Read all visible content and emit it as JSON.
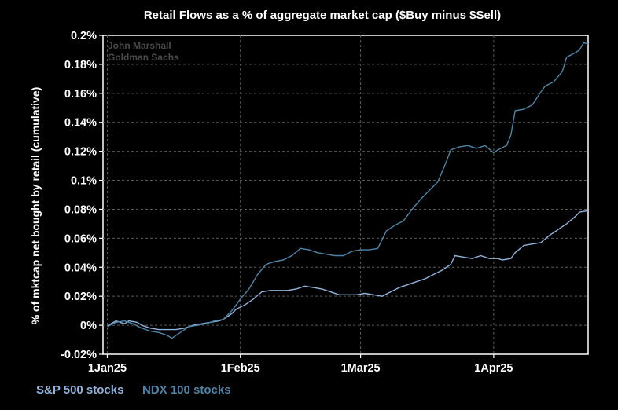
{
  "chart_data": {
    "type": "line",
    "title": "Retail Flows as a % of aggregate market cap ($Buy minus $Sell)",
    "ylabel": "% of mktcap net bought by retail (cumulative)",
    "xlabel": "",
    "credit_lines": [
      "John Marshall",
      "Goldman Sachs"
    ],
    "x_range": [
      "2024-12-31",
      "2025-04-23"
    ],
    "ylim": [
      -0.02,
      0.2
    ],
    "y_ticks": [
      {
        "value": 0.2,
        "label": "0.2%"
      },
      {
        "value": 0.18,
        "label": "0.18%"
      },
      {
        "value": 0.16,
        "label": "0.16%"
      },
      {
        "value": 0.14,
        "label": "0.14%"
      },
      {
        "value": 0.12,
        "label": "0.12%"
      },
      {
        "value": 0.1,
        "label": "0.1%"
      },
      {
        "value": 0.08,
        "label": "0.08%"
      },
      {
        "value": 0.06,
        "label": "0.06%"
      },
      {
        "value": 0.04,
        "label": "0.04%"
      },
      {
        "value": 0.02,
        "label": "0.02%"
      },
      {
        "value": 0,
        "label": "0%"
      },
      {
        "value": -0.02,
        "label": "-0.02%"
      }
    ],
    "x_ticks": [
      {
        "date": "2025-01-01",
        "label": "1Jan25"
      },
      {
        "date": "2025-02-01",
        "label": "1Feb25"
      },
      {
        "date": "2025-03-01",
        "label": "1Mar25"
      },
      {
        "date": "2025-04-01",
        "label": "1Apr25"
      }
    ],
    "grid": true,
    "grid_style": "dashed",
    "legend_position": "bottom-left",
    "series": [
      {
        "name": "S&P 500 stocks",
        "color": "#8fb3dc",
        "points": [
          [
            "2025-01-01",
            -0.0005
          ],
          [
            "2025-01-03",
            0.003
          ],
          [
            "2025-01-05",
            0.001
          ],
          [
            "2025-01-06",
            0.003
          ],
          [
            "2025-01-08",
            0.002
          ],
          [
            "2025-01-09",
            0.0
          ],
          [
            "2025-01-11",
            -0.002
          ],
          [
            "2025-01-13",
            -0.003
          ],
          [
            "2025-01-15",
            -0.003
          ],
          [
            "2025-01-17",
            -0.003
          ],
          [
            "2025-01-19",
            -0.002
          ],
          [
            "2025-01-20",
            -0.001
          ],
          [
            "2025-01-21",
            0.0
          ],
          [
            "2025-01-23",
            0.001
          ],
          [
            "2025-01-25",
            0.002
          ],
          [
            "2025-01-27",
            0.003
          ],
          [
            "2025-01-28",
            0.004
          ],
          [
            "2025-01-30",
            0.008
          ],
          [
            "2025-01-31",
            0.011
          ],
          [
            "2025-02-02",
            0.014
          ],
          [
            "2025-02-04",
            0.018
          ],
          [
            "2025-02-06",
            0.023
          ],
          [
            "2025-02-08",
            0.024
          ],
          [
            "2025-02-10",
            0.024
          ],
          [
            "2025-02-12",
            0.024
          ],
          [
            "2025-02-14",
            0.025
          ],
          [
            "2025-02-16",
            0.027
          ],
          [
            "2025-02-18",
            0.026
          ],
          [
            "2025-02-20",
            0.025
          ],
          [
            "2025-02-22",
            0.023
          ],
          [
            "2025-02-24",
            0.021
          ],
          [
            "2025-02-26",
            0.021
          ],
          [
            "2025-02-28",
            0.021
          ],
          [
            "2025-03-02",
            0.022
          ],
          [
            "2025-03-04",
            0.021
          ],
          [
            "2025-03-06",
            0.02
          ],
          [
            "2025-03-08",
            0.023
          ],
          [
            "2025-03-10",
            0.026
          ],
          [
            "2025-03-12",
            0.028
          ],
          [
            "2025-03-14",
            0.03
          ],
          [
            "2025-03-16",
            0.032
          ],
          [
            "2025-03-18",
            0.035
          ],
          [
            "2025-03-20",
            0.038
          ],
          [
            "2025-03-22",
            0.042
          ],
          [
            "2025-03-23",
            0.048
          ],
          [
            "2025-03-25",
            0.047
          ],
          [
            "2025-03-27",
            0.046
          ],
          [
            "2025-03-29",
            0.048
          ],
          [
            "2025-03-31",
            0.046
          ],
          [
            "2025-04-02",
            0.046
          ],
          [
            "2025-04-03",
            0.045
          ],
          [
            "2025-04-05",
            0.046
          ],
          [
            "2025-04-06",
            0.05
          ],
          [
            "2025-04-08",
            0.055
          ],
          [
            "2025-04-10",
            0.056
          ],
          [
            "2025-04-12",
            0.057
          ],
          [
            "2025-04-14",
            0.062
          ],
          [
            "2025-04-16",
            0.066
          ],
          [
            "2025-04-18",
            0.07
          ],
          [
            "2025-04-20",
            0.075
          ],
          [
            "2025-04-21",
            0.078
          ],
          [
            "2025-04-23",
            0.079
          ]
        ]
      },
      {
        "name": "NDX 100 stocks",
        "color": "#4d85a8",
        "points": [
          [
            "2025-01-01",
            -0.001
          ],
          [
            "2025-01-03",
            0.002
          ],
          [
            "2025-01-05",
            0.003
          ],
          [
            "2025-01-07",
            0.001
          ],
          [
            "2025-01-09",
            -0.002
          ],
          [
            "2025-01-11",
            -0.004
          ],
          [
            "2025-01-13",
            -0.005
          ],
          [
            "2025-01-15",
            -0.007
          ],
          [
            "2025-01-16",
            -0.009
          ],
          [
            "2025-01-18",
            -0.005
          ],
          [
            "2025-01-20",
            -0.001
          ],
          [
            "2025-01-22",
            0.0
          ],
          [
            "2025-01-24",
            0.001
          ],
          [
            "2025-01-26",
            0.003
          ],
          [
            "2025-01-28",
            0.004
          ],
          [
            "2025-01-30",
            0.01
          ],
          [
            "2025-02-01",
            0.018
          ],
          [
            "2025-02-03",
            0.025
          ],
          [
            "2025-02-05",
            0.035
          ],
          [
            "2025-02-07",
            0.042
          ],
          [
            "2025-02-09",
            0.044
          ],
          [
            "2025-02-11",
            0.045
          ],
          [
            "2025-02-13",
            0.048
          ],
          [
            "2025-02-15",
            0.053
          ],
          [
            "2025-02-17",
            0.052
          ],
          [
            "2025-02-19",
            0.05
          ],
          [
            "2025-02-21",
            0.049
          ],
          [
            "2025-02-23",
            0.048
          ],
          [
            "2025-02-25",
            0.048
          ],
          [
            "2025-02-27",
            0.051
          ],
          [
            "2025-03-01",
            0.052
          ],
          [
            "2025-03-03",
            0.052
          ],
          [
            "2025-03-05",
            0.053
          ],
          [
            "2025-03-07",
            0.065
          ],
          [
            "2025-03-09",
            0.069
          ],
          [
            "2025-03-11",
            0.072
          ],
          [
            "2025-03-13",
            0.08
          ],
          [
            "2025-03-15",
            0.087
          ],
          [
            "2025-03-17",
            0.093
          ],
          [
            "2025-03-19",
            0.099
          ],
          [
            "2025-03-21",
            0.113
          ],
          [
            "2025-03-22",
            0.121
          ],
          [
            "2025-03-24",
            0.123
          ],
          [
            "2025-03-26",
            0.124
          ],
          [
            "2025-03-28",
            0.122
          ],
          [
            "2025-03-30",
            0.124
          ],
          [
            "2025-04-01",
            0.119
          ],
          [
            "2025-04-02",
            0.121
          ],
          [
            "2025-04-04",
            0.124
          ],
          [
            "2025-04-05",
            0.131
          ],
          [
            "2025-04-06",
            0.148
          ],
          [
            "2025-04-08",
            0.149
          ],
          [
            "2025-04-10",
            0.152
          ],
          [
            "2025-04-12",
            0.161
          ],
          [
            "2025-04-13",
            0.165
          ],
          [
            "2025-04-15",
            0.168
          ],
          [
            "2025-04-17",
            0.175
          ],
          [
            "2025-04-18",
            0.185
          ],
          [
            "2025-04-20",
            0.188
          ],
          [
            "2025-04-21",
            0.19
          ],
          [
            "2025-04-22",
            0.195
          ],
          [
            "2025-04-23",
            0.194
          ]
        ]
      }
    ]
  }
}
